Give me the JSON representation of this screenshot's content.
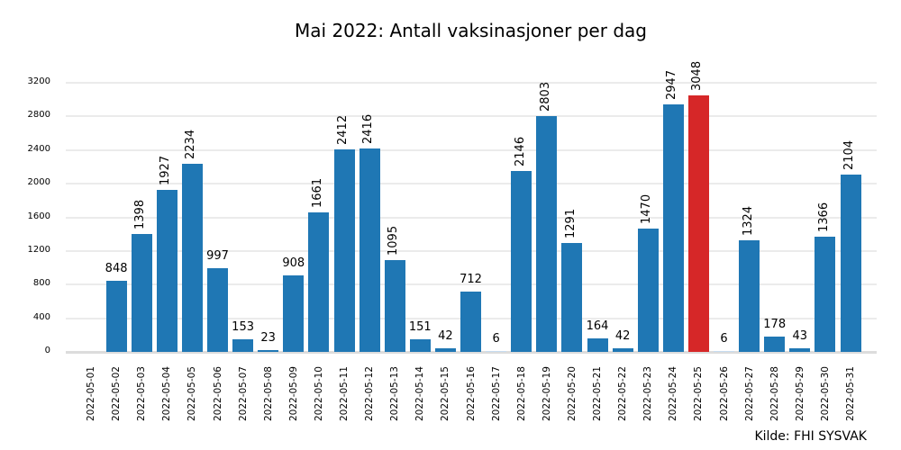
{
  "title": "Mai 2022: Antall vaksinasjoner per dag",
  "source": "Kilde: FHI SYSVAK",
  "colors": {
    "bar": "#1f77b4",
    "highlight": "#d62728",
    "faint": "#c6dbef"
  },
  "chart_data": {
    "type": "bar",
    "title": "Mai 2022: Antall vaksinasjoner per dag",
    "xlabel": "",
    "ylabel": "",
    "ylim": [
      0,
      3300
    ],
    "yticks": [
      0,
      400,
      800,
      1200,
      1600,
      2000,
      2400,
      2800,
      3200
    ],
    "grid": true,
    "legend": null,
    "annotations": [
      "Kilde: FHI SYSVAK"
    ],
    "highlight": {
      "category": "2022-05-25",
      "color": "#d62728"
    },
    "categories": [
      "2022-05-01",
      "2022-05-02",
      "2022-05-03",
      "2022-05-04",
      "2022-05-05",
      "2022-05-06",
      "2022-05-07",
      "2022-05-08",
      "2022-05-09",
      "2022-05-10",
      "2022-05-11",
      "2022-05-12",
      "2022-05-13",
      "2022-05-14",
      "2022-05-15",
      "2022-05-16",
      "2022-05-17",
      "2022-05-18",
      "2022-05-19",
      "2022-05-20",
      "2022-05-21",
      "2022-05-22",
      "2022-05-23",
      "2022-05-24",
      "2022-05-25",
      "2022-05-26",
      "2022-05-27",
      "2022-05-28",
      "2022-05-29",
      "2022-05-30",
      "2022-05-31"
    ],
    "values": [
      0,
      848,
      1398,
      1927,
      2234,
      997,
      153,
      23,
      908,
      1661,
      2412,
      2416,
      1095,
      151,
      42,
      712,
      6,
      2146,
      2803,
      1291,
      164,
      42,
      1470,
      2947,
      3048,
      6,
      1324,
      178,
      43,
      1366,
      2104
    ],
    "labels": [
      "",
      "848",
      "1398",
      "1927",
      "2234",
      "997",
      "153",
      "23",
      "908",
      "1661",
      "2412",
      "2416",
      "1095",
      "151",
      "42",
      "712",
      "6",
      "2146",
      "2803",
      "1291",
      "164",
      "42",
      "1470",
      "2947",
      "3048",
      "6",
      "1324",
      "178",
      "43",
      "1366",
      "2104"
    ]
  }
}
